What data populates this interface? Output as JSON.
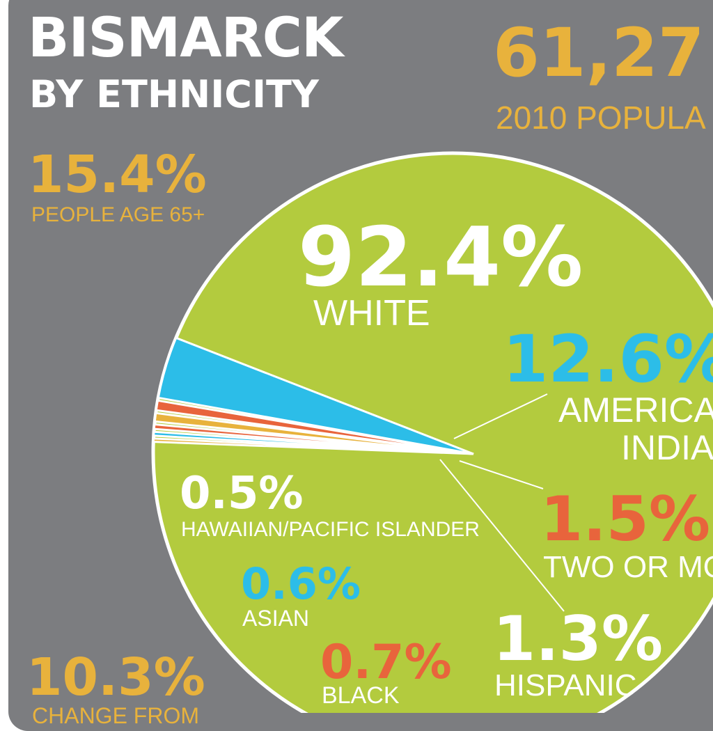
{
  "title_line1": "BISMARCK",
  "title_line2": "BY ETHNICITY",
  "population": {
    "value": "61,27",
    "label": "2010 POPULA"
  },
  "age65": {
    "value": "15.4%",
    "label": "PEOPLE AGE 65+"
  },
  "change": {
    "value": "10.3%",
    "label": "CHANGE FROM"
  },
  "colors": {
    "background": "#7c7d80",
    "white_slice": "#b3cb3e",
    "accent_yellow": "#e8b23c",
    "accent_blue": "#2cbde8",
    "accent_red": "#e8643c",
    "text_white": "#ffffff"
  },
  "chart_data": {
    "type": "pie",
    "title": "BISMARCK BY ETHNICITY",
    "slices": [
      {
        "label": "WHITE",
        "value": 92.4,
        "display": "92.4%",
        "color": "#b3cb3e"
      },
      {
        "label": "AMERICAN INDIAN",
        "value": 12.6,
        "display": "12.6%",
        "color": "#2cbde8"
      },
      {
        "label": "TWO OR MORE",
        "value": 1.5,
        "display": "1.5%",
        "color": "#e8643c"
      },
      {
        "label": "HISPANIC",
        "value": 1.3,
        "display": "1.3%",
        "color": "#e8b23c"
      },
      {
        "label": "BLACK",
        "value": 0.7,
        "display": "0.7%",
        "color": "#e8643c"
      },
      {
        "label": "ASIAN",
        "value": 0.6,
        "display": "0.6%",
        "color": "#2cbde8"
      },
      {
        "label": "HAWAIIAN/PACIFIC ISLANDER",
        "value": 0.5,
        "display": "0.5%",
        "color": "#e8b23c"
      }
    ],
    "labels": {
      "white_pct": "92.4%",
      "white_name": "WHITE",
      "amind_pct": "12.6%",
      "amind_name1": "AMERICA",
      "amind_name2": "INDIA",
      "two_pct": "1.5%",
      "two_name": "TWO OR MO",
      "hisp_pct": "1.3%",
      "hisp_name": "HISPANIC",
      "black_pct": "0.7%",
      "black_name": "BLACK",
      "asian_pct": "0.6%",
      "asian_name": "ASIAN",
      "hawaii_pct": "0.5%",
      "hawaii_name": "HAWAIIAN/PACIFIC ISLANDER"
    }
  }
}
